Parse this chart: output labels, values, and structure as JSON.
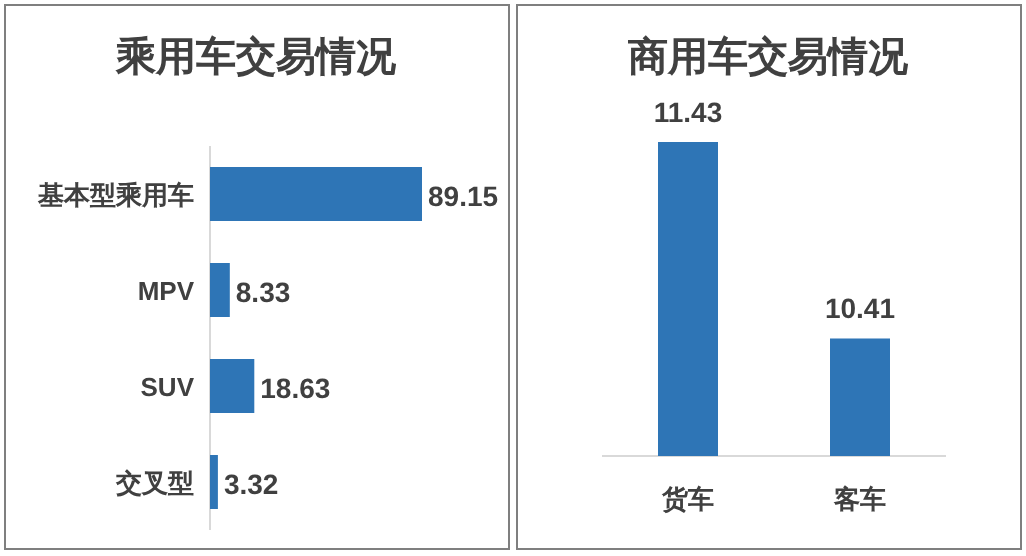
{
  "chart_data": [
    {
      "type": "bar",
      "title": "乘用车交易情况",
      "orientation": "horizontal",
      "categories": [
        "基本型乘用车",
        "MPV",
        "SUV",
        "交叉型"
      ],
      "values": [
        89.15,
        8.33,
        18.63,
        3.32
      ],
      "color": "#2e75b6",
      "data_labels": true,
      "tick_labels": "y"
    },
    {
      "type": "bar",
      "title": "商用车交易情况",
      "categories": [
        "货车",
        "客车"
      ],
      "values": [
        11.43,
        10.41
      ],
      "color": "#2e75b6",
      "ylim": [
        9.8,
        11.43
      ],
      "data_labels": true,
      "tick_labels": "x"
    }
  ]
}
